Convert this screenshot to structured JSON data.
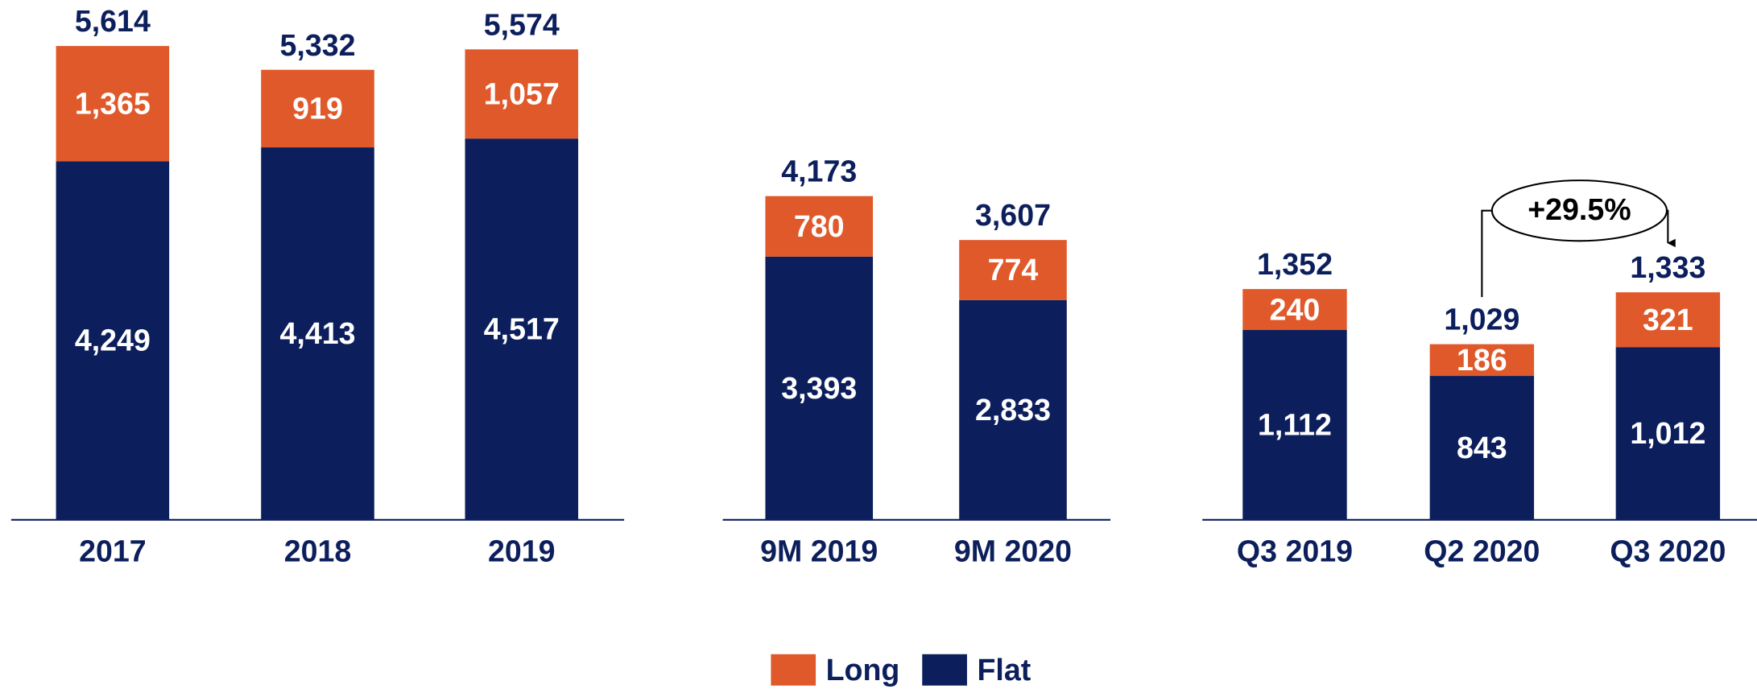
{
  "chart_data": [
    {
      "type": "bar",
      "stacked": true,
      "categories": [
        "2017",
        "2018",
        "2019"
      ],
      "series": [
        {
          "name": "Flat",
          "color": "#0c1f5c",
          "values": [
            4249,
            4413,
            4517
          ],
          "value_labels": [
            "4,249",
            "4,413",
            "4,517"
          ]
        },
        {
          "name": "Long",
          "color": "#e0592a",
          "values": [
            1365,
            919,
            1057
          ],
          "value_labels": [
            "1,365",
            "919",
            "1,057"
          ]
        }
      ],
      "totals": [
        5614,
        5332,
        5574
      ],
      "total_labels": [
        "5,614",
        "5,332",
        "5,574"
      ]
    },
    {
      "type": "bar",
      "stacked": true,
      "categories": [
        "9M 2019",
        "9M 2020"
      ],
      "series": [
        {
          "name": "Flat",
          "color": "#0c1f5c",
          "values": [
            3393,
            2833
          ],
          "value_labels": [
            "3,393",
            "2,833"
          ]
        },
        {
          "name": "Long",
          "color": "#e0592a",
          "values": [
            780,
            774
          ],
          "value_labels": [
            "780",
            "774"
          ]
        }
      ],
      "totals": [
        4173,
        3607
      ],
      "total_labels": [
        "4,173",
        "3,607"
      ]
    },
    {
      "type": "bar",
      "stacked": true,
      "categories": [
        "Q3 2019",
        "Q2 2020",
        "Q3 2020"
      ],
      "series": [
        {
          "name": "Flat",
          "color": "#0c1f5c",
          "values": [
            1112,
            843,
            1012
          ],
          "value_labels": [
            "1,112",
            "843",
            "1,012"
          ]
        },
        {
          "name": "Long",
          "color": "#e0592a",
          "values": [
            240,
            186,
            321
          ],
          "value_labels": [
            "240",
            "186",
            "321"
          ]
        }
      ],
      "totals": [
        1352,
        1029,
        1333
      ],
      "total_labels": [
        "1,352",
        "1,029",
        "1,333"
      ],
      "annotation": "+29.5%"
    }
  ]
}
